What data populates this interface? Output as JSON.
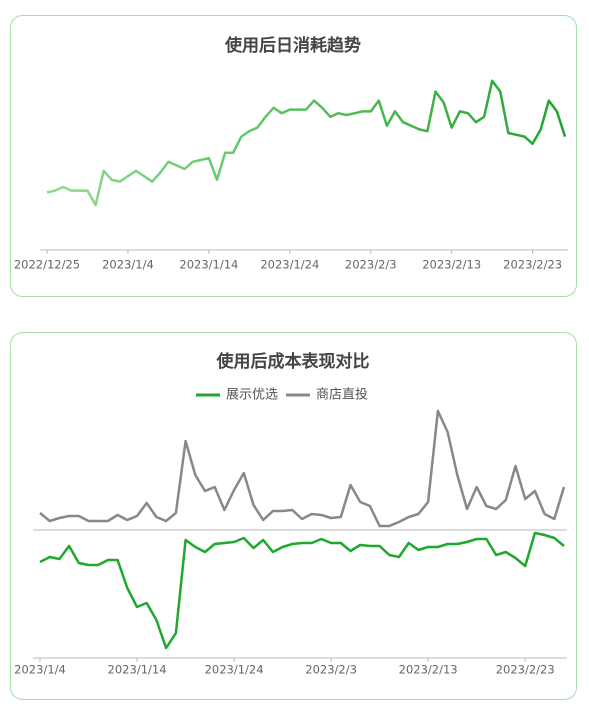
{
  "chart_data": [
    {
      "type": "line",
      "title": "使用后日消耗趋势",
      "categories": [
        "2022/12/25",
        null,
        null,
        null,
        null,
        null,
        null,
        null,
        null,
        null,
        "2023/1/4",
        null,
        null,
        null,
        null,
        null,
        null,
        null,
        null,
        null,
        "2023/1/14",
        null,
        null,
        null,
        null,
        null,
        null,
        null,
        null,
        null,
        "2023/1/24",
        null,
        null,
        null,
        null,
        null,
        null,
        null,
        null,
        null,
        "2023/2/3",
        null,
        null,
        null,
        null,
        null,
        null,
        null,
        null,
        null,
        "2023/2/13",
        null,
        null,
        null,
        null,
        null,
        null,
        null,
        null,
        null,
        "2023/2/23",
        null,
        null,
        null,
        null
      ],
      "series": [
        {
          "gradient": [
            "#8fdc8f",
            "#1fa52f"
          ],
          "values": [
            32,
            33,
            35,
            33,
            33,
            33,
            25,
            44,
            39,
            38,
            41,
            44,
            41,
            38,
            43,
            49,
            47,
            45,
            49,
            50,
            51,
            39,
            54,
            54,
            63,
            66,
            68,
            74,
            79,
            76,
            78,
            78,
            78,
            83,
            79,
            74,
            76,
            75,
            76,
            77,
            77,
            83,
            69,
            77,
            71,
            69,
            67,
            66,
            88,
            82,
            68,
            77,
            76,
            71,
            74,
            94,
            88,
            65,
            64,
            63,
            59,
            67,
            83,
            77,
            63
          ]
        }
      ],
      "ylim": [
        0,
        100
      ]
    },
    {
      "type": "line",
      "title": "使用后成本表现对比",
      "legend": "top",
      "categories": [
        "2023/1/4",
        null,
        null,
        null,
        null,
        null,
        null,
        null,
        null,
        null,
        "2023/1/14",
        null,
        null,
        null,
        null,
        null,
        null,
        null,
        null,
        null,
        "2023/1/24",
        null,
        null,
        null,
        null,
        null,
        null,
        null,
        null,
        null,
        "2023/2/3",
        null,
        null,
        null,
        null,
        null,
        null,
        null,
        null,
        null,
        "2023/2/13",
        null,
        null,
        null,
        null,
        null,
        null,
        null,
        null,
        null,
        "2023/2/23",
        null,
        null,
        null,
        null
      ],
      "series": [
        {
          "name": "展示优选",
          "color": "#1fa82e",
          "values": [
            -32,
            -27,
            -29,
            -16,
            -33,
            -35,
            -35,
            -30,
            -30,
            -58,
            -77,
            -73,
            -90,
            -118,
            -103,
            -10,
            -17,
            -22,
            -14,
            -13,
            -12,
            -8,
            -18,
            -10,
            -22,
            -17,
            -14,
            -13,
            -13,
            -9,
            -13,
            -13,
            -21,
            -15,
            -16,
            -16,
            -25,
            -27,
            -13,
            -20,
            -17,
            -17,
            -14,
            -14,
            -12,
            -9,
            -9,
            -25,
            -22,
            -28,
            -36,
            -3,
            -5,
            -8,
            -16
          ]
        },
        {
          "name": "商店直投",
          "color": "#888888",
          "values": [
            17,
            9,
            12,
            14,
            14,
            9,
            9,
            9,
            15,
            10,
            14,
            27,
            13,
            9,
            17,
            89,
            55,
            39,
            43,
            20,
            40,
            57,
            25,
            10,
            19,
            19,
            20,
            11,
            16,
            15,
            12,
            13,
            45,
            28,
            24,
            4,
            4,
            8,
            13,
            16,
            28,
            119,
            98,
            55,
            21,
            43,
            24,
            21,
            30,
            64,
            31,
            39,
            16,
            11,
            43
          ]
        }
      ],
      "ylim": [
        -128,
        130
      ],
      "zero_line": true
    }
  ]
}
